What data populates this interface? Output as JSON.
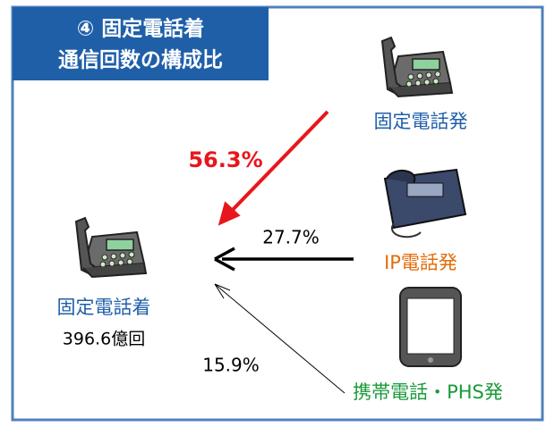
{
  "header": {
    "title_lines": [
      "④ 固定電話着",
      "通信回数の構成比"
    ]
  },
  "target": {
    "label": "固定電話着",
    "total": "396.6億回"
  },
  "sources": [
    {
      "label": "固定電話発",
      "share": "56.3%"
    },
    {
      "label": "IP電話発",
      "share": "27.7%"
    },
    {
      "label": "携帯電話・PHS発",
      "share": "15.9%"
    }
  ]
}
